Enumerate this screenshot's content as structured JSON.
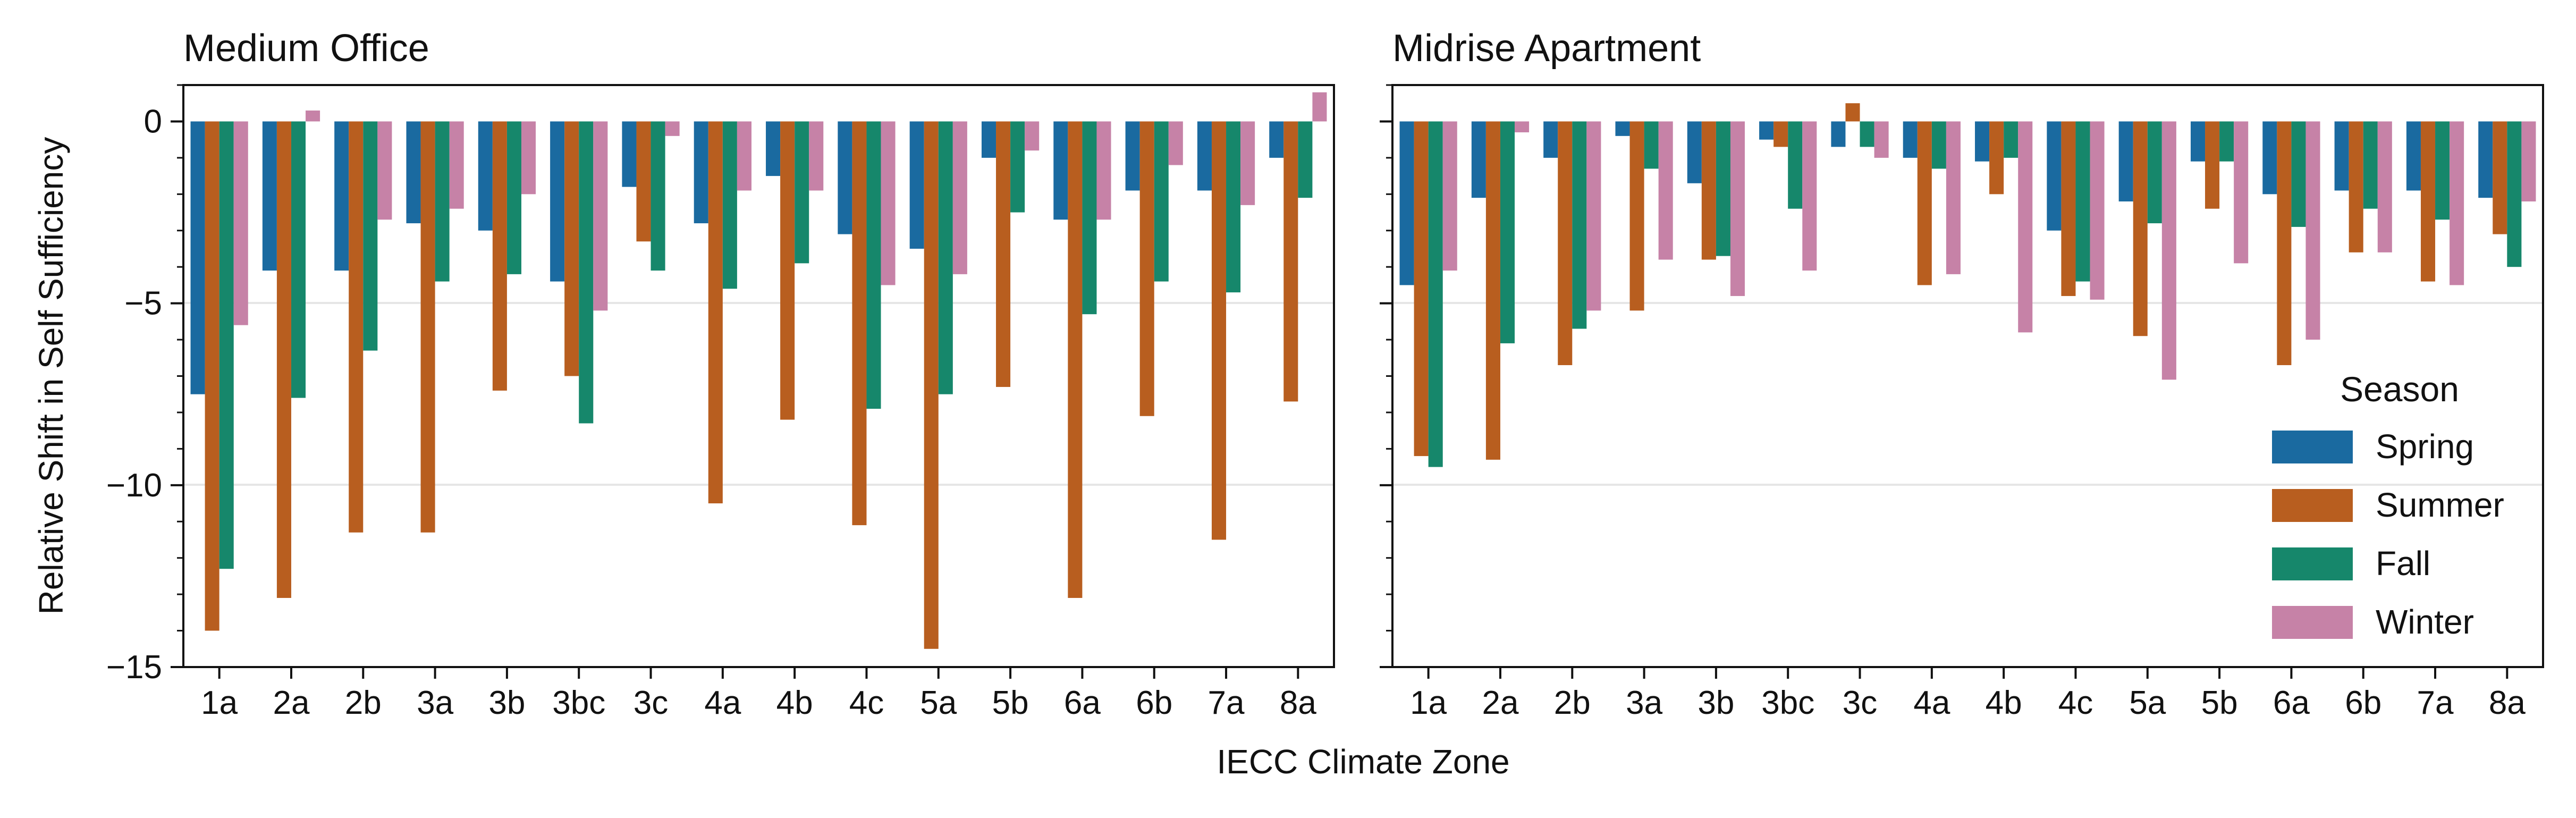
{
  "figure": {
    "xlabel": "IECC Climate Zone",
    "ylabel": "Relative Shift in Self Sufficiency"
  },
  "legend": {
    "title": "Season",
    "placement": "right panel, middle-right"
  },
  "colors": {
    "Spring": "#1a6aa0",
    "Summer": "#b85e1f",
    "Fall": "#16876b",
    "Winter": "#c682a7"
  },
  "chart_data": [
    {
      "type": "bar",
      "title": "Medium Office",
      "xlabel": "IECC Climate Zone",
      "ylabel": "Relative Shift in Self Sufficiency",
      "ylim": [
        -15,
        1
      ],
      "yticks": [
        0,
        -5,
        -10,
        -15
      ],
      "grid": "horizontal",
      "categories": [
        "1a",
        "2a",
        "2b",
        "3a",
        "3b",
        "3bc",
        "3c",
        "4a",
        "4b",
        "4c",
        "5a",
        "5b",
        "6a",
        "6b",
        "7a",
        "8a"
      ],
      "series": [
        {
          "name": "Spring",
          "values": [
            -7.5,
            -4.1,
            -4.1,
            -2.8,
            -3.0,
            -4.4,
            -1.8,
            -2.8,
            -1.5,
            -3.1,
            -3.5,
            -1.0,
            -2.7,
            -1.9,
            -1.9,
            -1.0
          ]
        },
        {
          "name": "Summer",
          "values": [
            -14.0,
            -13.1,
            -11.3,
            -11.3,
            -7.4,
            -7.0,
            -3.3,
            -10.5,
            -8.2,
            -11.1,
            -14.5,
            -7.3,
            -13.1,
            -8.1,
            -11.5,
            -7.7
          ]
        },
        {
          "name": "Fall",
          "values": [
            -12.3,
            -7.6,
            -6.3,
            -4.4,
            -4.2,
            -8.3,
            -4.1,
            -4.6,
            -3.9,
            -7.9,
            -7.5,
            -2.5,
            -5.3,
            -4.4,
            -4.7,
            -2.1
          ]
        },
        {
          "name": "Winter",
          "values": [
            -5.6,
            0.3,
            -2.7,
            -2.4,
            -2.0,
            -5.2,
            -0.4,
            -1.9,
            -1.9,
            -4.5,
            -4.2,
            -0.8,
            -2.7,
            -1.2,
            -2.3,
            0.8
          ]
        }
      ]
    },
    {
      "type": "bar",
      "title": "Midrise Apartment",
      "xlabel": "IECC Climate Zone",
      "ylim": [
        -15,
        1
      ],
      "grid": "horizontal",
      "categories": [
        "1a",
        "2a",
        "2b",
        "3a",
        "3b",
        "3bc",
        "3c",
        "4a",
        "4b",
        "4c",
        "5a",
        "5b",
        "6a",
        "6b",
        "7a",
        "8a"
      ],
      "series": [
        {
          "name": "Spring",
          "values": [
            -4.5,
            -2.1,
            -1.0,
            -0.4,
            -1.7,
            -0.5,
            -0.7,
            -1.0,
            -1.1,
            -3.0,
            -2.2,
            -1.1,
            -2.0,
            -1.9,
            -1.9,
            -2.1
          ]
        },
        {
          "name": "Summer",
          "values": [
            -9.2,
            -9.3,
            -6.7,
            -5.2,
            -3.8,
            -0.7,
            0.5,
            -4.5,
            -2.0,
            -4.8,
            -5.9,
            -2.4,
            -6.7,
            -3.6,
            -4.4,
            -3.1
          ]
        },
        {
          "name": "Fall",
          "values": [
            -9.5,
            -6.1,
            -5.7,
            -1.3,
            -3.7,
            -2.4,
            -0.7,
            -1.3,
            -1.0,
            -4.4,
            -2.8,
            -1.1,
            -2.9,
            -2.4,
            -2.7,
            -4.0
          ]
        },
        {
          "name": "Winter",
          "values": [
            -4.1,
            -0.3,
            -5.2,
            -3.8,
            -4.8,
            -4.1,
            -1.0,
            -4.2,
            -5.8,
            -4.9,
            -7.1,
            -3.9,
            -6.0,
            -3.6,
            -4.5,
            -2.2
          ]
        }
      ]
    }
  ]
}
